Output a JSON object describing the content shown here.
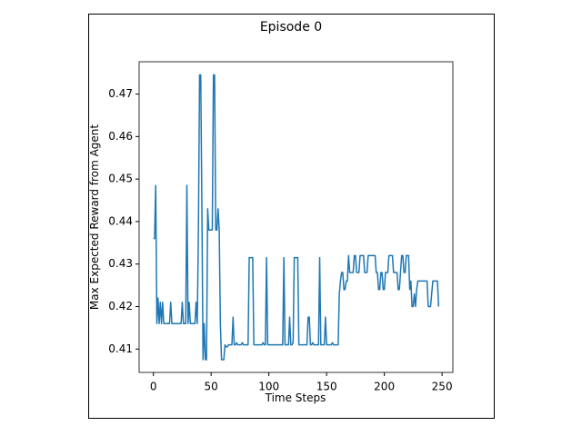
{
  "chart_data": {
    "type": "line",
    "title": "Episode 0",
    "xlabel": "Time Steps",
    "ylabel": "Max Expected Reward from Agent",
    "color": "#1f77b4",
    "values": [
      0.436,
      0.436,
      0.4485,
      0.416,
      0.422,
      0.416,
      0.421,
      0.416,
      0.421,
      0.416,
      0.416,
      0.416,
      0.416,
      0.416,
      0.416,
      0.421,
      0.416,
      0.416,
      0.416,
      0.416,
      0.416,
      0.416,
      0.416,
      0.416,
      0.416,
      0.421,
      0.416,
      0.416,
      0.416,
      0.4485,
      0.416,
      0.421,
      0.416,
      0.416,
      0.416,
      0.416,
      0.416,
      0.421,
      0.416,
      0.438,
      0.4745,
      0.4745,
      0.443,
      0.4075,
      0.416,
      0.4075,
      0.4075,
      0.443,
      0.438,
      0.438,
      0.438,
      0.438,
      0.4745,
      0.4745,
      0.438,
      0.438,
      0.443,
      0.438,
      0.416,
      0.4075,
      0.4075,
      0.4075,
      0.411,
      0.4105,
      0.4105,
      0.411,
      0.411,
      0.411,
      0.411,
      0.4175,
      0.411,
      0.411,
      0.4115,
      0.411,
      0.411,
      0.411,
      0.411,
      0.4115,
      0.411,
      0.411,
      0.411,
      0.411,
      0.411,
      0.4315,
      0.4315,
      0.4315,
      0.4315,
      0.411,
      0.411,
      0.411,
      0.411,
      0.411,
      0.411,
      0.411,
      0.411,
      0.4115,
      0.411,
      0.411,
      0.4315,
      0.411,
      0.411,
      0.411,
      0.411,
      0.411,
      0.411,
      0.411,
      0.411,
      0.411,
      0.411,
      0.411,
      0.411,
      0.411,
      0.411,
      0.4315,
      0.411,
      0.411,
      0.411,
      0.411,
      0.4175,
      0.411,
      0.411,
      0.4115,
      0.4315,
      0.4315,
      0.4315,
      0.4315,
      0.411,
      0.411,
      0.411,
      0.411,
      0.411,
      0.411,
      0.411,
      0.411,
      0.4175,
      0.4175,
      0.411,
      0.411,
      0.4115,
      0.411,
      0.411,
      0.411,
      0.411,
      0.411,
      0.4315,
      0.411,
      0.411,
      0.411,
      0.411,
      0.4175,
      0.411,
      0.411,
      0.411,
      0.411,
      0.411,
      0.4115,
      0.411,
      0.411,
      0.411,
      0.411,
      0.411,
      0.423,
      0.426,
      0.428,
      0.428,
      0.424,
      0.424,
      0.426,
      0.426,
      0.432,
      0.428,
      0.428,
      0.428,
      0.428,
      0.432,
      0.432,
      0.428,
      0.428,
      0.428,
      0.432,
      0.432,
      0.432,
      0.432,
      0.428,
      0.428,
      0.428,
      0.432,
      0.432,
      0.432,
      0.432,
      0.432,
      0.432,
      0.432,
      0.428,
      0.428,
      0.424,
      0.424,
      0.428,
      0.428,
      0.424,
      0.424,
      0.428,
      0.428,
      0.428,
      0.432,
      0.432,
      0.432,
      0.432,
      0.428,
      0.428,
      0.428,
      0.428,
      0.424,
      0.424,
      0.428,
      0.432,
      0.432,
      0.428,
      0.428,
      0.432,
      0.432,
      0.432,
      0.424,
      0.426,
      0.42,
      0.42,
      0.423,
      0.42,
      0.424,
      0.426,
      0.426,
      0.426,
      0.426,
      0.426,
      0.426,
      0.426,
      0.426,
      0.426,
      0.42,
      0.42,
      0.42,
      0.423,
      0.426,
      0.426,
      0.426,
      0.426,
      0.426,
      0.42
    ],
    "xlim": [
      -12.35,
      259.35
    ],
    "xticks": [
      0,
      50,
      100,
      150,
      200,
      250
    ],
    "ylim": [
      0.4045,
      0.4776
    ],
    "yticks": [
      0.41,
      0.42,
      0.43,
      0.44,
      0.45,
      0.46,
      0.47
    ]
  }
}
